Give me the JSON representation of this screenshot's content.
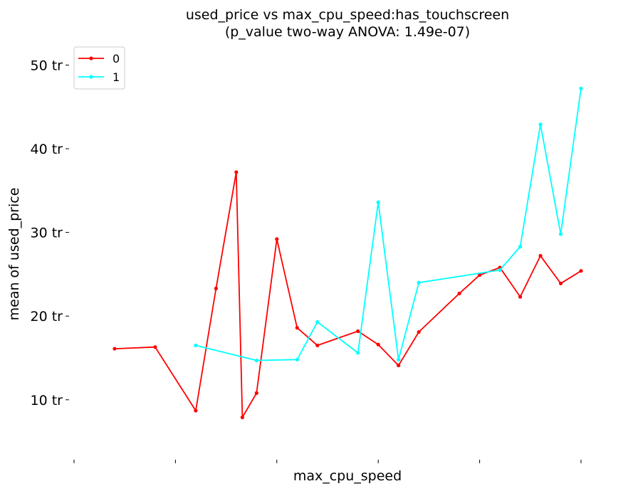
{
  "chart_data": {
    "type": "line",
    "title": "used_price vs max_cpu_speed:has_touchscreen",
    "subtitle": "(p_value two-way ANOVA: 1.49e-07)",
    "xlabel": "max_cpu_speed",
    "ylabel": "mean of used_price",
    "y_unit": "tr",
    "yticks": [
      10,
      20,
      30,
      40,
      50
    ],
    "ytick_labels": [
      "10 tr",
      "20 tr",
      "30 tr",
      "40 tr",
      "50 tr"
    ],
    "xticks": [
      0,
      5,
      10,
      15,
      20,
      25
    ],
    "xlim": [
      0,
      25
    ],
    "ylim": [
      4.2,
      52.5
    ],
    "grid": false,
    "legend_position": "top-left",
    "series": [
      {
        "name": "0",
        "color": "#ff0000",
        "x": [
          2,
          4,
          6,
          7,
          8,
          8.3,
          9,
          10,
          11,
          12,
          14,
          15,
          16,
          17,
          19,
          20,
          21,
          22,
          23,
          24,
          25
        ],
        "y": [
          16.1,
          16.3,
          8.7,
          23.3,
          37.2,
          7.9,
          10.8,
          29.2,
          18.6,
          16.5,
          18.2,
          16.6,
          14.1,
          18.1,
          22.7,
          24.9,
          25.8,
          22.3,
          27.2,
          23.9,
          25.4
        ]
      },
      {
        "name": "1",
        "color": "#00ffff",
        "x": [
          6,
          9,
          11,
          12,
          14,
          15,
          16,
          17,
          21,
          22,
          23,
          24,
          25
        ],
        "y": [
          16.5,
          14.7,
          14.8,
          19.3,
          15.6,
          33.6,
          14.8,
          24.0,
          25.5,
          28.3,
          42.9,
          29.8,
          47.2
        ]
      }
    ]
  }
}
